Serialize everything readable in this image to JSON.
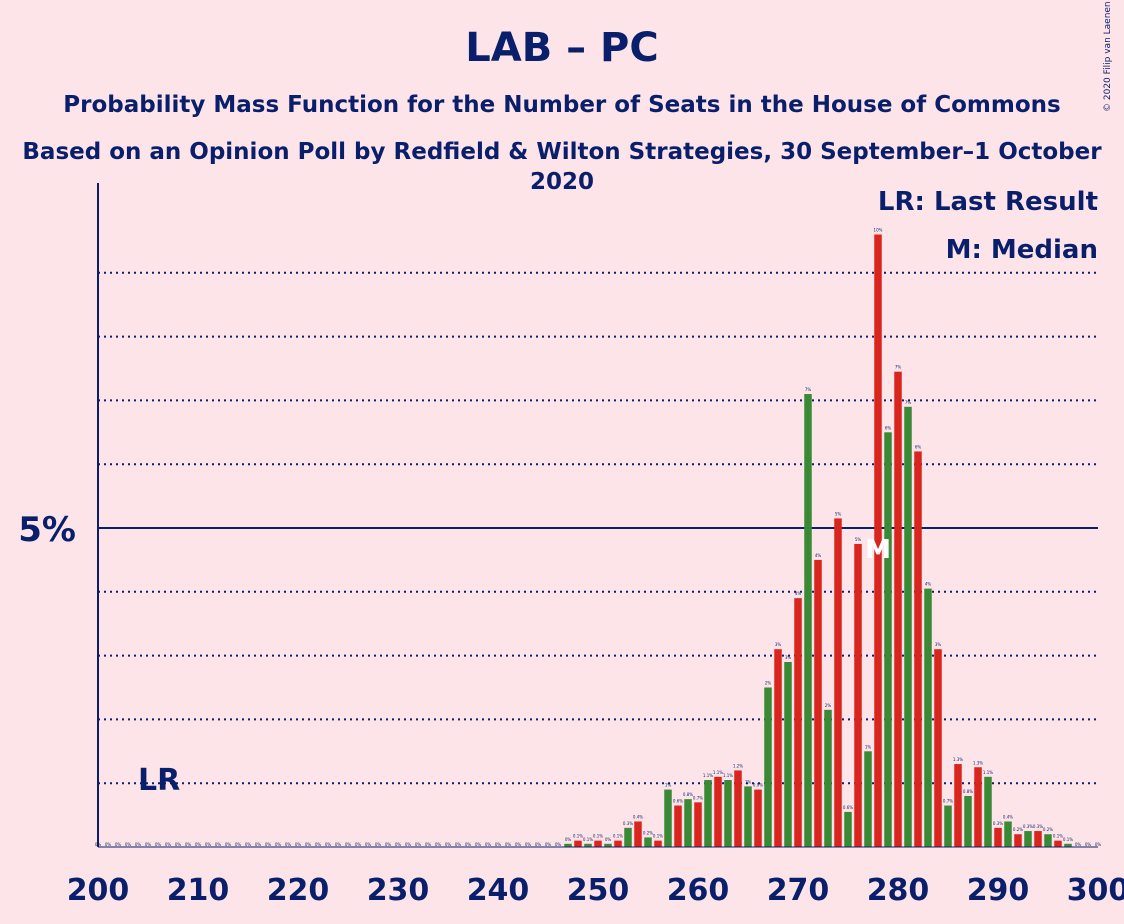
{
  "title": "LAB – PC",
  "subtitle": "Probability Mass Function for the Number of Seats in the House of Commons",
  "subtitle2": "Based on an Opinion Poll by Redfield & Wilton Strategies, 30 September–1 October 2020",
  "copyright": "© 2020 Filip van Laenen",
  "colors": {
    "text": "#0a1f6b",
    "green": "#3a8a35",
    "red": "#d8251e",
    "background": "#fde4e8"
  },
  "chart_data": {
    "type": "bar",
    "x_start": 200,
    "x_end": 300,
    "xticks": [
      200,
      210,
      220,
      230,
      240,
      250,
      260,
      270,
      280,
      290,
      300
    ],
    "xtick_labels": [
      "200",
      "210",
      "220",
      "230",
      "240",
      "250",
      "260",
      "270",
      "280",
      "290",
      "300"
    ],
    "ylim": [
      0,
      10.5
    ],
    "ytick_label": "5%",
    "ytick_value": 5,
    "gridlines": [
      1,
      2,
      3,
      4,
      6,
      7,
      8,
      9
    ],
    "legend": [
      "LR: Last Result",
      "M: Median"
    ],
    "legend_position": "top-right",
    "last_result": {
      "seat": 205,
      "label": "LR"
    },
    "median": {
      "seat": 278,
      "label": "M"
    },
    "seats": [
      247,
      248,
      249,
      250,
      251,
      252,
      253,
      254,
      255,
      256,
      257,
      258,
      259,
      260,
      261,
      262,
      263,
      264,
      265,
      266,
      267,
      268,
      269,
      270,
      271,
      272,
      273,
      274,
      275,
      276,
      277,
      278,
      279,
      280,
      281,
      282,
      283,
      284,
      285,
      286,
      287,
      288,
      289,
      290,
      291,
      292,
      293,
      294,
      295,
      296,
      297
    ],
    "values": [
      0.05,
      0.1,
      0.05,
      0.1,
      0.05,
      0.1,
      0.3,
      0.4,
      0.15,
      0.1,
      0.9,
      0.65,
      0.75,
      0.7,
      1.05,
      1.1,
      1.05,
      1.2,
      0.95,
      0.9,
      2.5,
      3.1,
      2.9,
      3.9,
      7.1,
      4.5,
      2.15,
      5.15,
      0.55,
      4.75,
      1.5,
      9.6,
      6.5,
      7.45,
      6.9,
      6.2,
      4.05,
      3.1,
      0.65,
      1.3,
      0.8,
      1.25,
      1.1,
      0.3,
      0.4,
      0.2,
      0.25,
      0.25,
      0.2,
      0.1,
      0.05
    ],
    "labels": [
      "0%",
      "0.1%",
      "0.1%",
      "0.1%",
      "0%",
      "0.1%",
      "0.3%",
      "0.4%",
      "0.2%",
      "0.1%",
      "1%",
      "0.6%",
      "0.8%",
      "0.7%",
      "1.1%",
      "1.1%",
      "1.1%",
      "1.2%",
      "1%",
      "0.9%",
      "2%",
      "3%",
      "3%",
      "4%",
      "7%",
      "4%",
      "2%",
      "5%",
      "0.6%",
      "5%",
      "1%",
      "10%",
      "6%",
      "7%",
      "7%",
      "6%",
      "4%",
      "3%",
      "0.7%",
      "1.3%",
      "0.8%",
      "1.3%",
      "1.1%",
      "0.3%",
      "0.4%",
      "0.2%",
      "0.3%",
      "0.3%",
      "0.2%",
      "0.1%",
      "0.1%"
    ],
    "zero_label": "0%"
  }
}
